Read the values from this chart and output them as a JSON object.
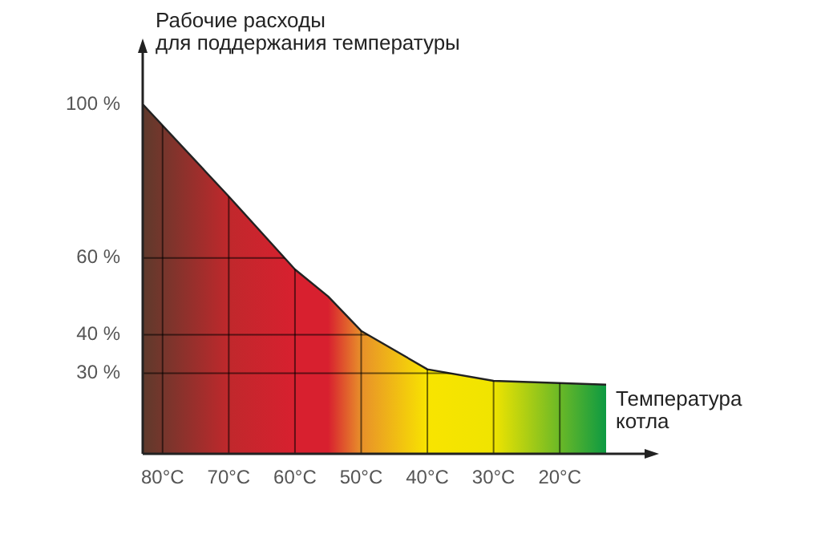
{
  "chart_data": {
    "type": "area",
    "ylabel": "Рабочие расходы\nдля поддержания температуры",
    "xlabel": "Температура\nкотла",
    "x": [
      83,
      70,
      60,
      55,
      50,
      40,
      30,
      13
    ],
    "series": [
      {
        "values": [
          100,
          76,
          57,
          50,
          41,
          31,
          28,
          27
        ],
        "colors": [
          "#5e3a2c",
          "#c0282c",
          "#d8202f",
          "#d8202f",
          "#e8902a",
          "#f8e400",
          "#f0e400",
          "#0d9a42"
        ]
      }
    ],
    "xlim": [
      83,
      13
    ],
    "xticks": [
      {
        "value": 80,
        "label": "80°C"
      },
      {
        "value": 70,
        "label": "70°C"
      },
      {
        "value": 60,
        "label": "60°C"
      },
      {
        "value": 50,
        "label": "50°C"
      },
      {
        "value": 40,
        "label": "40°C"
      },
      {
        "value": 30,
        "label": "30°C"
      },
      {
        "value": 20,
        "label": "20°C"
      }
    ],
    "ylim": [
      9,
      100
    ],
    "yticks": [
      {
        "value": 30,
        "label": "30 %"
      },
      {
        "value": 40,
        "label": "40 %"
      },
      {
        "value": 60,
        "label": "60 %"
      },
      {
        "value": 100,
        "label": "100 %"
      }
    ],
    "grid": true,
    "legend": false
  }
}
